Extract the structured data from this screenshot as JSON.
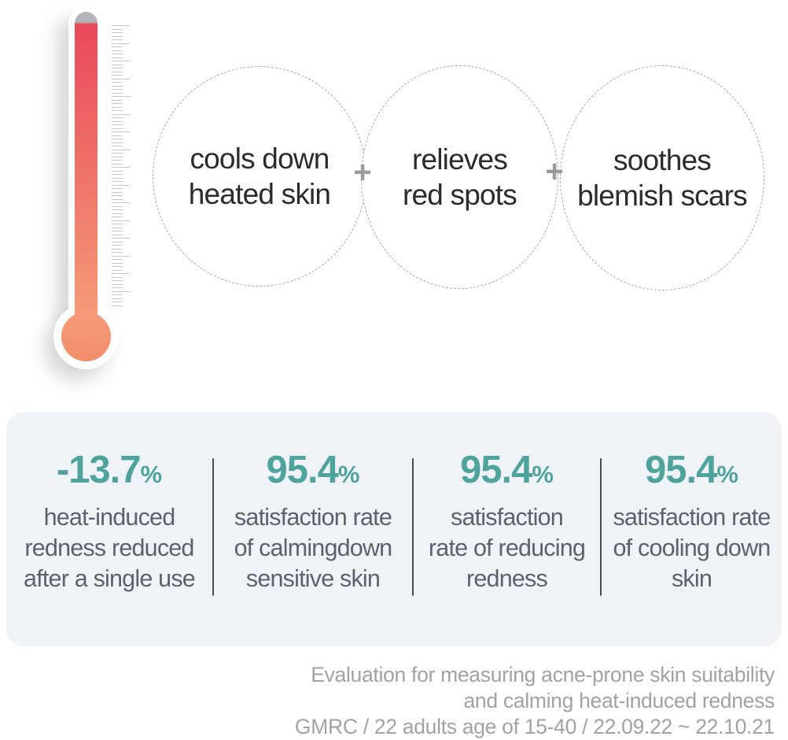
{
  "benefits": {
    "separator": "+",
    "items": [
      {
        "lines": [
          "cools down",
          "heated skin"
        ]
      },
      {
        "lines": [
          "relieves",
          "red spots"
        ]
      },
      {
        "lines": [
          "soothes",
          "blemish scars"
        ]
      }
    ]
  },
  "stats": {
    "items": [
      {
        "value": "-13.7",
        "unit": "%",
        "lines": [
          "heat-induced",
          "redness reduced",
          "after a single use"
        ]
      },
      {
        "value": "95.4",
        "unit": "%",
        "lines": [
          "satisfaction rate",
          "of calmingdown",
          "sensitive skin"
        ]
      },
      {
        "value": "95.4",
        "unit": "%",
        "lines": [
          "satisfaction",
          "rate of reducing",
          "redness"
        ]
      },
      {
        "value": "95.4",
        "unit": "%",
        "lines": [
          "satisfaction rate",
          "of cooling down",
          "skin"
        ]
      }
    ]
  },
  "footnote": {
    "lines": [
      "Evaluation for measuring acne-prone skin suitability",
      "and calming heat-induced redness",
      "GMRC / 22 adults age of 15-40 / 22.09.22 ~ 22.10.21"
    ]
  },
  "colors": {
    "accent_teal": "#4FA39D",
    "thermometer_top": "#E8495A",
    "thermometer_bottom": "#F59B77",
    "panel_background": "#EFF3F7",
    "divider": "#4A4E54"
  }
}
